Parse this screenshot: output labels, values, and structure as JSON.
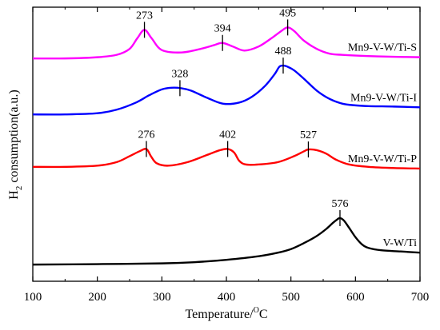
{
  "chart_data": {
    "type": "line",
    "xlabel": "Temperature/",
    "xlabel_unit_sup": "O",
    "xlabel_unit": "C",
    "ylabel_main": "H",
    "ylabel_sub": "2",
    "ylabel_rest": " consumption(a.u.)",
    "xlim": [
      100,
      700
    ],
    "xticks": [
      "100",
      "200",
      "300",
      "400",
      "500",
      "600",
      "700"
    ],
    "y_ticks_shown": false,
    "grid": false,
    "legend": "inline labels at right end of each curve",
    "series": [
      {
        "name": "Mn9-V-W/Ti-S",
        "color": "#ff00ff",
        "points": [
          [
            100,
            0.935
          ],
          [
            150,
            0.935
          ],
          [
            200,
            0.94
          ],
          [
            230,
            0.95
          ],
          [
            250,
            0.975
          ],
          [
            262,
            1.02
          ],
          [
            273,
            1.055
          ],
          [
            284,
            1.02
          ],
          [
            300,
            0.97
          ],
          [
            330,
            0.96
          ],
          [
            360,
            0.975
          ],
          [
            380,
            0.99
          ],
          [
            394,
            1.0
          ],
          [
            410,
            0.985
          ],
          [
            428,
            0.968
          ],
          [
            450,
            0.985
          ],
          [
            470,
            1.02
          ],
          [
            485,
            1.05
          ],
          [
            495,
            1.065
          ],
          [
            505,
            1.05
          ],
          [
            520,
            1.01
          ],
          [
            540,
            0.975
          ],
          [
            560,
            0.955
          ],
          [
            580,
            0.95
          ],
          [
            620,
            0.945
          ],
          [
            660,
            0.942
          ],
          [
            700,
            0.94
          ]
        ],
        "peaks": [
          {
            "x": 273,
            "label": "273"
          },
          {
            "x": 394,
            "label": "394"
          },
          {
            "x": 495,
            "label": "495"
          }
        ]
      },
      {
        "name": "Mn9-V-W/Ti-I",
        "color": "#0000ff",
        "points": [
          [
            100,
            0.7
          ],
          [
            150,
            0.7
          ],
          [
            200,
            0.705
          ],
          [
            230,
            0.72
          ],
          [
            260,
            0.75
          ],
          [
            280,
            0.78
          ],
          [
            300,
            0.805
          ],
          [
            315,
            0.812
          ],
          [
            330,
            0.81
          ],
          [
            345,
            0.8
          ],
          [
            370,
            0.77
          ],
          [
            395,
            0.745
          ],
          [
            420,
            0.75
          ],
          [
            440,
            0.775
          ],
          [
            460,
            0.82
          ],
          [
            475,
            0.87
          ],
          [
            482,
            0.9
          ],
          [
            488,
            0.905
          ],
          [
            495,
            0.9
          ],
          [
            505,
            0.885
          ],
          [
            520,
            0.85
          ],
          [
            540,
            0.8
          ],
          [
            560,
            0.765
          ],
          [
            580,
            0.745
          ],
          [
            600,
            0.738
          ],
          [
            620,
            0.735
          ],
          [
            660,
            0.733
          ],
          [
            700,
            0.73
          ]
        ],
        "peaks": [
          {
            "x": 328,
            "label": "328"
          },
          {
            "x": 488,
            "label": "488"
          }
        ]
      },
      {
        "name": "Mn9-V-W/Ti-P",
        "color": "#ff0000",
        "points": [
          [
            100,
            0.48
          ],
          [
            150,
            0.48
          ],
          [
            200,
            0.485
          ],
          [
            230,
            0.5
          ],
          [
            250,
            0.525
          ],
          [
            265,
            0.545
          ],
          [
            276,
            0.555
          ],
          [
            283,
            0.525
          ],
          [
            292,
            0.495
          ],
          [
            310,
            0.485
          ],
          [
            340,
            0.5
          ],
          [
            370,
            0.53
          ],
          [
            390,
            0.55
          ],
          [
            402,
            0.555
          ],
          [
            412,
            0.54
          ],
          [
            420,
            0.505
          ],
          [
            430,
            0.49
          ],
          [
            450,
            0.49
          ],
          [
            480,
            0.5
          ],
          [
            505,
            0.525
          ],
          [
            520,
            0.545
          ],
          [
            527,
            0.553
          ],
          [
            540,
            0.55
          ],
          [
            555,
            0.535
          ],
          [
            570,
            0.51
          ],
          [
            590,
            0.49
          ],
          [
            620,
            0.48
          ],
          [
            660,
            0.475
          ],
          [
            700,
            0.473
          ]
        ],
        "peaks": [
          {
            "x": 276,
            "label": "276"
          },
          {
            "x": 402,
            "label": "402"
          },
          {
            "x": 527,
            "label": "527"
          }
        ]
      },
      {
        "name": "V-W/Ti",
        "color": "#000000",
        "points": [
          [
            100,
            0.07
          ],
          [
            200,
            0.072
          ],
          [
            300,
            0.075
          ],
          [
            350,
            0.08
          ],
          [
            400,
            0.09
          ],
          [
            450,
            0.105
          ],
          [
            480,
            0.12
          ],
          [
            500,
            0.135
          ],
          [
            520,
            0.16
          ],
          [
            540,
            0.19
          ],
          [
            555,
            0.22
          ],
          [
            565,
            0.245
          ],
          [
            572,
            0.26
          ],
          [
            576,
            0.265
          ],
          [
            582,
            0.255
          ],
          [
            590,
            0.225
          ],
          [
            600,
            0.185
          ],
          [
            610,
            0.155
          ],
          [
            620,
            0.14
          ],
          [
            640,
            0.13
          ],
          [
            670,
            0.125
          ],
          [
            700,
            0.12
          ]
        ],
        "peaks": [
          {
            "x": 576,
            "label": "576"
          }
        ]
      }
    ]
  }
}
